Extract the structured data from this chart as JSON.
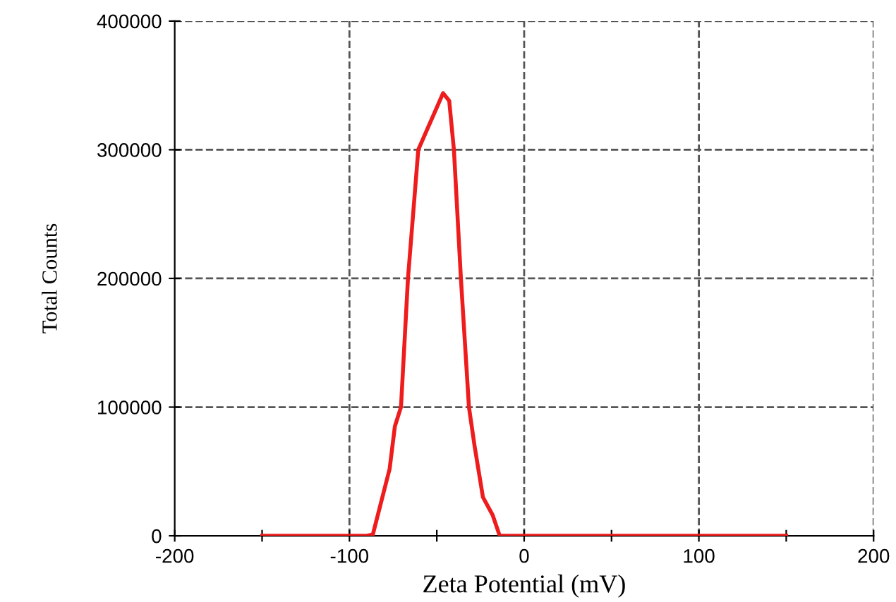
{
  "chart_data": {
    "type": "line",
    "xlabel": "Zeta Potential (mV)",
    "ylabel": "Total Counts",
    "series": [
      {
        "color": "#ee1c1c",
        "x": [
          -150,
          -90,
          -86.6,
          -77,
          -74,
          -70.5,
          -66.5,
          -60.6,
          -46.4,
          -42.9,
          -40.2,
          -36.2,
          -31.6,
          -28.4,
          -23.6,
          -18,
          -14,
          150
        ],
        "values": [
          0,
          0,
          1000,
          52000,
          85000,
          100000,
          200000,
          300000,
          344000,
          338000,
          300000,
          200000,
          100000,
          70000,
          30000,
          16000,
          0,
          0
        ]
      }
    ],
    "xlim": [
      -200,
      200
    ],
    "xticks": [
      -200,
      {
        "value": -150,
        "label": null
      },
      -100,
      {
        "value": -50,
        "label": null
      },
      0,
      {
        "value": 50,
        "label": null
      },
      100,
      {
        "value": 150,
        "label": null
      },
      200
    ],
    "ylim": [
      0,
      400000
    ],
    "yticks": [
      0,
      100000,
      200000,
      300000,
      400000
    ],
    "grid": true,
    "marker": "none",
    "line_style": "solid"
  }
}
